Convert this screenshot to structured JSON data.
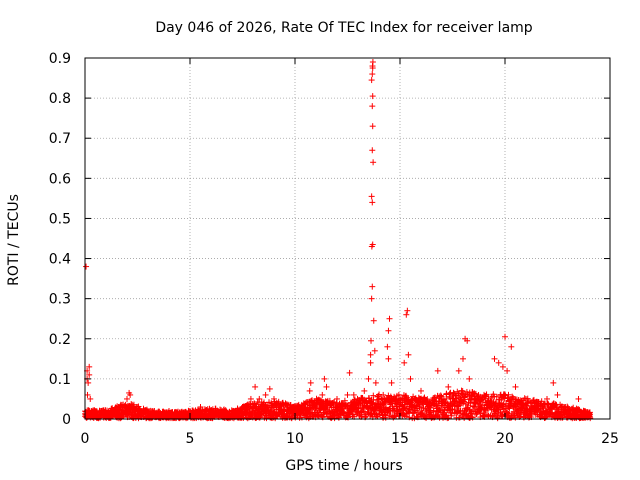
{
  "chart_data": {
    "type": "scatter",
    "title": "Day 046 of 2026, Rate Of TEC Index for receiver lamp",
    "xlabel": "GPS time / hours",
    "ylabel": "ROTI / TECUs",
    "xlim": [
      0,
      25
    ],
    "ylim": [
      0,
      0.9
    ],
    "xticks": [
      0,
      5,
      10,
      15,
      20,
      25
    ],
    "yticks": [
      0,
      0.1,
      0.2,
      0.3,
      0.4,
      0.5,
      0.6,
      0.7,
      0.8,
      0.9
    ],
    "xtick_labels": [
      "0",
      "5",
      "10",
      "15",
      "20",
      "25"
    ],
    "ytick_labels": [
      "0",
      "0.1",
      "0.2",
      "0.3",
      "0.4",
      "0.5",
      "0.6",
      "0.7",
      "0.8",
      "0.9"
    ],
    "grid": true,
    "marker": "+",
    "marker_color": "#ff0000",
    "series": [
      {
        "name": "ROTI",
        "points": [
          [
            0.05,
            0.38
          ],
          [
            0.1,
            0.12
          ],
          [
            0.1,
            0.1
          ],
          [
            0.15,
            0.09
          ],
          [
            0.2,
            0.11
          ],
          [
            0.12,
            0.06
          ],
          [
            0.2,
            0.13
          ],
          [
            0.25,
            0.05
          ],
          [
            0.3,
            0.02
          ],
          [
            0.5,
            0.015
          ],
          [
            0.7,
            0.02
          ],
          [
            1.0,
            0.015
          ],
          [
            1.3,
            0.02
          ],
          [
            1.6,
            0.03
          ],
          [
            1.8,
            0.035
          ],
          [
            2.0,
            0.05
          ],
          [
            2.1,
            0.065
          ],
          [
            2.15,
            0.06
          ],
          [
            2.3,
            0.03
          ],
          [
            2.6,
            0.02
          ],
          [
            3.0,
            0.015
          ],
          [
            3.5,
            0.015
          ],
          [
            4.0,
            0.02
          ],
          [
            4.5,
            0.015
          ],
          [
            5.0,
            0.02
          ],
          [
            5.5,
            0.03
          ],
          [
            6.0,
            0.02
          ],
          [
            6.5,
            0.015
          ],
          [
            7.0,
            0.02
          ],
          [
            7.5,
            0.03
          ],
          [
            7.9,
            0.05
          ],
          [
            8.1,
            0.08
          ],
          [
            8.3,
            0.05
          ],
          [
            8.6,
            0.06
          ],
          [
            8.8,
            0.075
          ],
          [
            9.0,
            0.05
          ],
          [
            9.4,
            0.04
          ],
          [
            9.8,
            0.035
          ],
          [
            10.2,
            0.02
          ],
          [
            10.5,
            0.03
          ],
          [
            10.7,
            0.07
          ],
          [
            10.75,
            0.09
          ],
          [
            11.0,
            0.04
          ],
          [
            11.3,
            0.06
          ],
          [
            11.4,
            0.1
          ],
          [
            11.5,
            0.08
          ],
          [
            11.8,
            0.04
          ],
          [
            12.0,
            0.05
          ],
          [
            12.2,
            0.03
          ],
          [
            12.5,
            0.06
          ],
          [
            12.6,
            0.115
          ],
          [
            12.8,
            0.06
          ],
          [
            13.0,
            0.04
          ],
          [
            13.3,
            0.07
          ],
          [
            13.5,
            0.1
          ],
          [
            13.6,
            0.16
          ],
          [
            13.6,
            0.14
          ],
          [
            13.62,
            0.195
          ],
          [
            13.65,
            0.3
          ],
          [
            13.68,
            0.33
          ],
          [
            13.66,
            0.43
          ],
          [
            13.7,
            0.435
          ],
          [
            13.68,
            0.54
          ],
          [
            13.65,
            0.555
          ],
          [
            13.72,
            0.64
          ],
          [
            13.68,
            0.67
          ],
          [
            13.7,
            0.73
          ],
          [
            13.68,
            0.78
          ],
          [
            13.7,
            0.805
          ],
          [
            13.65,
            0.845
          ],
          [
            13.68,
            0.86
          ],
          [
            13.7,
            0.875
          ],
          [
            13.69,
            0.88
          ],
          [
            13.71,
            0.89
          ],
          [
            13.75,
            0.245
          ],
          [
            13.8,
            0.17
          ],
          [
            13.85,
            0.09
          ],
          [
            14.0,
            0.05
          ],
          [
            14.2,
            0.06
          ],
          [
            14.4,
            0.18
          ],
          [
            14.45,
            0.22
          ],
          [
            14.5,
            0.25
          ],
          [
            14.45,
            0.15
          ],
          [
            14.6,
            0.09
          ],
          [
            14.8,
            0.05
          ],
          [
            15.0,
            0.04
          ],
          [
            15.2,
            0.14
          ],
          [
            15.3,
            0.26
          ],
          [
            15.35,
            0.27
          ],
          [
            15.4,
            0.16
          ],
          [
            15.5,
            0.1
          ],
          [
            15.7,
            0.05
          ],
          [
            16.0,
            0.07
          ],
          [
            16.4,
            0.04
          ],
          [
            16.8,
            0.12
          ],
          [
            17.0,
            0.05
          ],
          [
            17.3,
            0.08
          ],
          [
            17.5,
            0.05
          ],
          [
            17.8,
            0.12
          ],
          [
            18.0,
            0.15
          ],
          [
            18.1,
            0.2
          ],
          [
            18.2,
            0.195
          ],
          [
            18.3,
            0.1
          ],
          [
            18.6,
            0.05
          ],
          [
            19.0,
            0.06
          ],
          [
            19.5,
            0.15
          ],
          [
            19.7,
            0.14
          ],
          [
            19.9,
            0.13
          ],
          [
            20.0,
            0.205
          ],
          [
            20.1,
            0.12
          ],
          [
            20.3,
            0.18
          ],
          [
            20.5,
            0.08
          ],
          [
            21.0,
            0.05
          ],
          [
            21.5,
            0.03
          ],
          [
            22.0,
            0.05
          ],
          [
            22.3,
            0.09
          ],
          [
            22.5,
            0.06
          ],
          [
            22.8,
            0.03
          ],
          [
            23.2,
            0.02
          ],
          [
            23.5,
            0.05
          ],
          [
            23.8,
            0.02
          ],
          [
            24.0,
            0.01
          ]
        ]
      }
    ],
    "envelope": {
      "description": "dense baseline band of ROTI values from 0 up to local maximum, sampled every 0.05 h",
      "x": [
        0,
        1,
        2,
        3,
        4,
        5,
        6,
        7,
        8,
        9,
        10,
        11,
        12,
        13,
        14,
        15,
        16,
        17,
        18,
        19,
        20,
        21,
        22,
        23,
        24
      ],
      "ymax": [
        0.02,
        0.02,
        0.04,
        0.02,
        0.015,
        0.02,
        0.025,
        0.02,
        0.04,
        0.045,
        0.03,
        0.05,
        0.04,
        0.05,
        0.06,
        0.06,
        0.05,
        0.06,
        0.07,
        0.06,
        0.06,
        0.05,
        0.04,
        0.03,
        0.015
      ]
    }
  }
}
